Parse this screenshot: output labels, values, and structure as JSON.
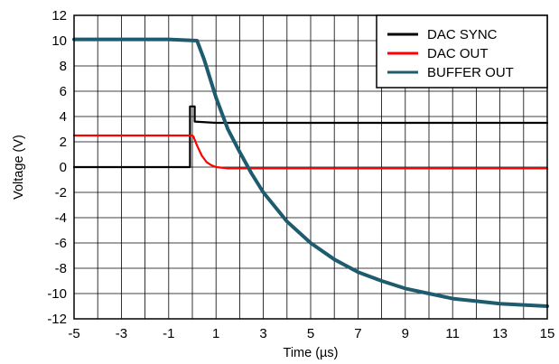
{
  "chart_data": {
    "type": "line",
    "title": "",
    "xlabel": "Time (µs)",
    "ylabel": "Voltage (V)",
    "xlim": [
      -5,
      15
    ],
    "ylim": [
      -12,
      12
    ],
    "x_ticks": [
      -5,
      -3,
      -1,
      1,
      3,
      5,
      7,
      9,
      11,
      13,
      15
    ],
    "x_tick_labels": [
      "-5",
      "-3",
      "-1",
      "1",
      "3",
      "5",
      "7",
      "9",
      "11",
      "13",
      "15"
    ],
    "y_ticks": [
      12,
      10,
      8,
      6,
      4,
      2,
      0,
      -2,
      -4,
      -6,
      -8,
      -10,
      -12
    ],
    "y_tick_labels": [
      "12",
      "10",
      "8",
      "6",
      "4",
      "2",
      "0",
      "-2",
      "-4",
      "-6",
      "-8",
      "-10",
      "-12"
    ],
    "grid": true,
    "legend_position": "top-right",
    "series": [
      {
        "name": "DAC SYNC",
        "color": "#000000",
        "x": [
          -5,
          -0.1,
          -0.1,
          0.1,
          0.1,
          1,
          5,
          10,
          15
        ],
        "y": [
          0,
          0,
          4.8,
          4.8,
          3.6,
          3.5,
          3.5,
          3.5,
          3.5
        ]
      },
      {
        "name": "DAC OUT",
        "color": "#ff0000",
        "x": [
          -5,
          -2,
          0,
          0.05,
          0.2,
          0.4,
          0.6,
          0.8,
          1.0,
          1.5,
          3,
          15
        ],
        "y": [
          2.5,
          2.5,
          2.5,
          2.4,
          1.7,
          0.9,
          0.4,
          0.15,
          0.0,
          -0.1,
          -0.1,
          -0.1
        ]
      },
      {
        "name": "BUFFER OUT",
        "color": "#1f5b6e",
        "x": [
          -5,
          -3,
          -1,
          0.2,
          0.5,
          1,
          1.5,
          2,
          2.5,
          3,
          4,
          5,
          6,
          7,
          8,
          9,
          10,
          11,
          12,
          13,
          14,
          15
        ],
        "y": [
          10.1,
          10.1,
          10.1,
          10.0,
          8.5,
          5.5,
          3.0,
          1.2,
          -0.5,
          -2.0,
          -4.3,
          -6.0,
          -7.3,
          -8.3,
          -9.0,
          -9.6,
          -10.0,
          -10.4,
          -10.6,
          -10.8,
          -10.9,
          -11.0
        ]
      }
    ]
  }
}
